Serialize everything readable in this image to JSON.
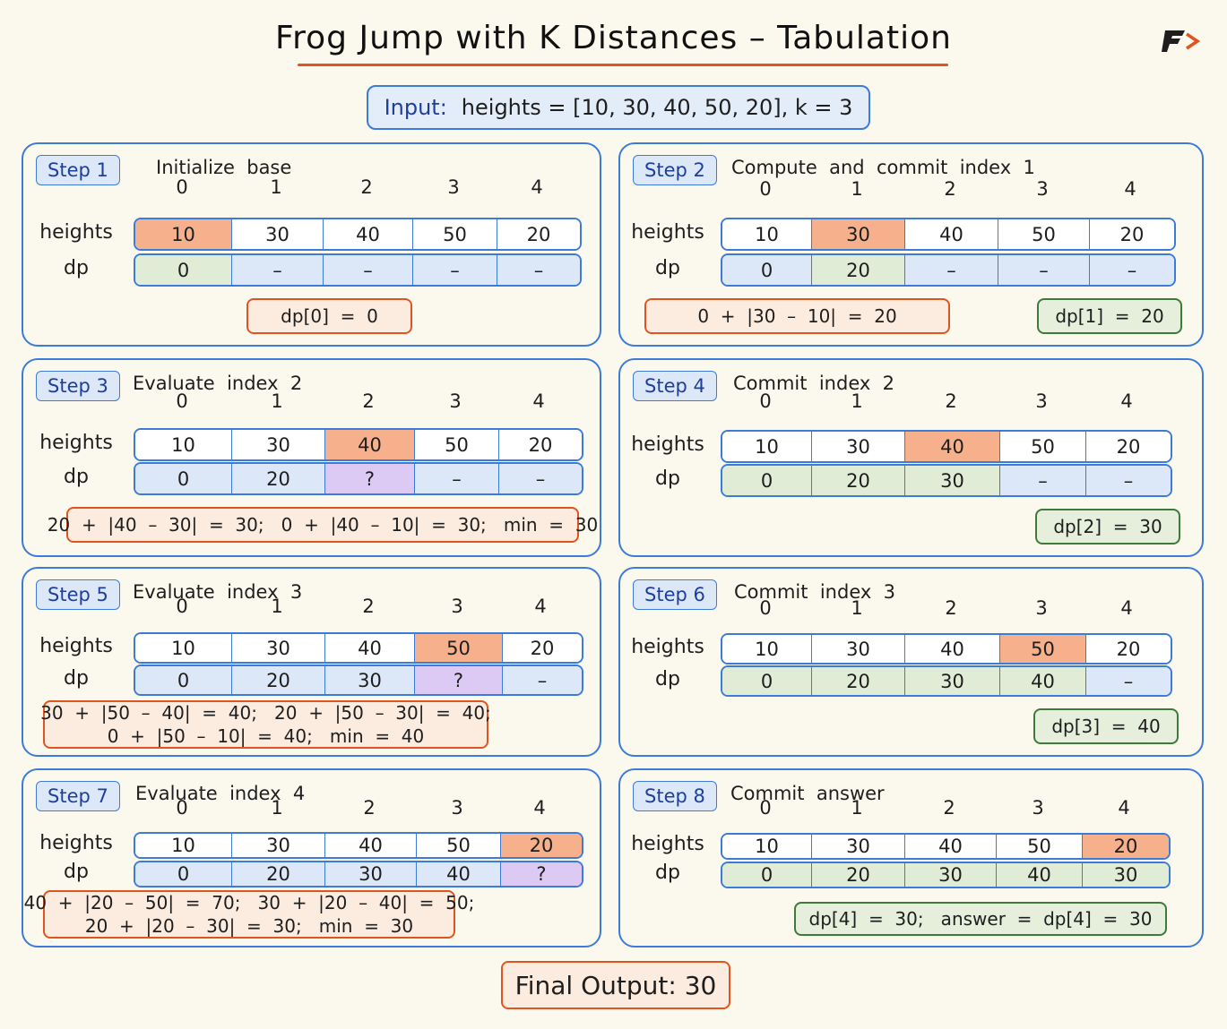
{
  "title": "Frog Jump with K Distances – Tabulation",
  "input": {
    "label": "Input:",
    "text": "heights  =  [10, 30, 40, 50, 20], k = 3"
  },
  "row_labels": {
    "heights": "heights",
    "dp": "dp"
  },
  "indices": [
    "0",
    "1",
    "2",
    "3",
    "4"
  ],
  "steps": [
    {
      "badge": "Step 1",
      "title": "Initialize  base",
      "heights": [
        "10",
        "30",
        "40",
        "50",
        "20"
      ],
      "heights_colors": [
        "orange",
        "white",
        "white",
        "white",
        "white"
      ],
      "dp": [
        "0",
        "–",
        "–",
        "–",
        "–"
      ],
      "dp_colors": [
        "green",
        "blue",
        "blue",
        "blue",
        "blue"
      ],
      "notes": [
        {
          "lines": [
            "dp[0]  =  0"
          ],
          "style": "orange"
        }
      ]
    },
    {
      "badge": "Step 2",
      "title": "Compute  and  commit  index  1",
      "heights": [
        "10",
        "30",
        "40",
        "50",
        "20"
      ],
      "heights_colors": [
        "white",
        "orange",
        "white",
        "white",
        "white"
      ],
      "dp": [
        "0",
        "20",
        "–",
        "–",
        "–"
      ],
      "dp_colors": [
        "blue",
        "green",
        "blue",
        "blue",
        "blue"
      ],
      "notes": [
        {
          "lines": [
            "0  +  |30  –  10|  =  20"
          ],
          "style": "orange"
        },
        {
          "lines": [
            "dp[1]  =  20"
          ],
          "style": "green"
        }
      ]
    },
    {
      "badge": "Step 3",
      "title": "Evaluate  index  2",
      "heights": [
        "10",
        "30",
        "40",
        "50",
        "20"
      ],
      "heights_colors": [
        "white",
        "white",
        "orange",
        "white",
        "white"
      ],
      "dp": [
        "0",
        "20",
        "?",
        "–",
        "–"
      ],
      "dp_colors": [
        "blue",
        "blue",
        "purple",
        "blue",
        "blue"
      ],
      "notes": [
        {
          "lines": [
            "20  +  |40  –  30|  =  30;   0  +  |40  –  10|  =  30;   min  =  30"
          ],
          "style": "orange"
        }
      ]
    },
    {
      "badge": "Step 4",
      "title": "Commit  index  2",
      "heights": [
        "10",
        "30",
        "40",
        "50",
        "20"
      ],
      "heights_colors": [
        "white",
        "white",
        "orange",
        "white",
        "white"
      ],
      "dp": [
        "0",
        "20",
        "30",
        "–",
        "–"
      ],
      "dp_colors": [
        "green",
        "green",
        "green",
        "blue",
        "blue"
      ],
      "notes": [
        {
          "lines": [
            "dp[2]  =  30"
          ],
          "style": "green"
        }
      ]
    },
    {
      "badge": "Step 5",
      "title": "Evaluate  index  3",
      "heights": [
        "10",
        "30",
        "40",
        "50",
        "20"
      ],
      "heights_colors": [
        "white",
        "white",
        "white",
        "orange",
        "white"
      ],
      "dp": [
        "0",
        "20",
        "30",
        "?",
        "–"
      ],
      "dp_colors": [
        "blue",
        "blue",
        "blue",
        "purple",
        "blue"
      ],
      "notes": [
        {
          "lines": [
            "30  +  |50  –  40|  =  40;   20  +  |50  –  30|  =  40;",
            "0  +  |50  –  10|  =  40;   min  =  40"
          ],
          "style": "orange"
        }
      ]
    },
    {
      "badge": "Step 6",
      "title": "Commit  index  3",
      "heights": [
        "10",
        "30",
        "40",
        "50",
        "20"
      ],
      "heights_colors": [
        "white",
        "white",
        "white",
        "orange",
        "white"
      ],
      "dp": [
        "0",
        "20",
        "30",
        "40",
        "–"
      ],
      "dp_colors": [
        "green",
        "green",
        "green",
        "green",
        "blue"
      ],
      "notes": [
        {
          "lines": [
            "dp[3]  =  40"
          ],
          "style": "green"
        }
      ]
    },
    {
      "badge": "Step 7",
      "title": "Evaluate  index  4",
      "heights": [
        "10",
        "30",
        "40",
        "50",
        "20"
      ],
      "heights_colors": [
        "white",
        "white",
        "white",
        "white",
        "orange"
      ],
      "dp": [
        "0",
        "20",
        "30",
        "40",
        "?"
      ],
      "dp_colors": [
        "blue",
        "blue",
        "blue",
        "blue",
        "purple"
      ],
      "notes": [
        {
          "lines": [
            "40  +  |20  –  50|  =  70;   30  +  |20  –  40|  =  50;",
            "20  +  |20  –  30|  =  30;   min  =  30"
          ],
          "style": "orange"
        }
      ]
    },
    {
      "badge": "Step 8",
      "title": "Commit  answer",
      "heights": [
        "10",
        "30",
        "40",
        "50",
        "20"
      ],
      "heights_colors": [
        "white",
        "white",
        "white",
        "white",
        "orange"
      ],
      "dp": [
        "0",
        "20",
        "30",
        "40",
        "30"
      ],
      "dp_colors": [
        "green",
        "green",
        "green",
        "green",
        "green"
      ],
      "notes": [
        {
          "lines": [
            "dp[4]  =  30;   answer  =  dp[4]  =  30"
          ],
          "style": "green"
        }
      ]
    }
  ],
  "final_output": "Final  Output:  30",
  "colors": {
    "accent_blue": "#3d7bd9",
    "accent_orange": "#e0551f",
    "accent_green": "#3f7a3a",
    "highlight_purple": "#dccaf5"
  },
  "logo_icon": "brand-logo-icon"
}
